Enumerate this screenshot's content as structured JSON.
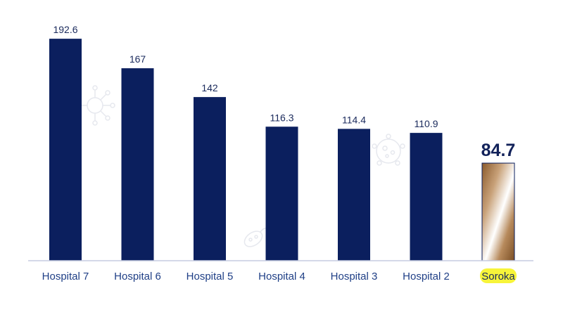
{
  "chart_data": {
    "type": "bar",
    "categories": [
      "Hospital 7",
      "Hospital 6",
      "Hospital 5",
      "Hospital 4",
      "Hospital 3",
      "Hospital 2",
      "Soroka"
    ],
    "values": [
      192.6,
      167,
      142,
      116.3,
      114.4,
      110.9,
      84.7
    ],
    "value_labels": [
      "192.6",
      "167",
      "142",
      "116.3",
      "114.4",
      "110.9",
      "84.7"
    ],
    "highlight_category": "Soroka",
    "ylim": [
      0,
      200
    ],
    "grid": false,
    "legend": "none",
    "title": "",
    "xlabel": "",
    "ylabel": ""
  },
  "colors": {
    "bar": "#0b1f5e",
    "highlight_bar_gradient": [
      "#8a5a2c",
      "#c9a27a",
      "#ffffff",
      "#b78a5c",
      "#7a4e24"
    ],
    "highlight_marker": "#f7f43a",
    "axis_line": "#c5cbe0",
    "tick_label": "#1f3f86"
  },
  "icons": {
    "watermarks": [
      "virus-watermark-icon",
      "bacteria-watermark-icon",
      "microbe-watermark-icon"
    ]
  }
}
